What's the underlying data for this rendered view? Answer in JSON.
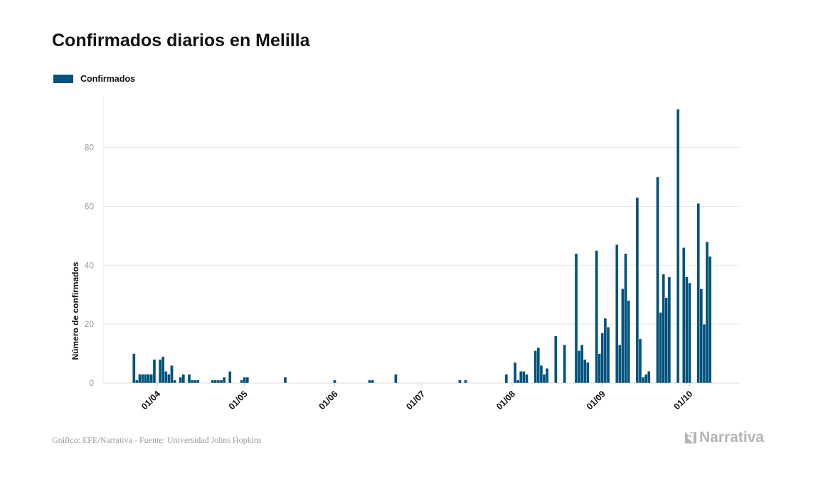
{
  "title": "Confirmados diarios en Melilla",
  "footer": "Gráfico: EFE/Narrativa - Fuente: Universidad Johns Hopkins",
  "logo_text": "Narrativa",
  "colors": {
    "bar": "#00527c",
    "grid": "#e8e8e8",
    "tick_text": "#999999",
    "logo": "#b5b5b5"
  },
  "chart_data": {
    "type": "bar",
    "title": "Confirmados diarios en Melilla",
    "xlabel": "",
    "ylabel": "Número de confirmados",
    "ylim": [
      0,
      97.5
    ],
    "yticks": [
      0,
      20,
      40,
      60,
      80
    ],
    "xticks": [
      "01/04",
      "01/05",
      "01/06",
      "01/07",
      "01/08",
      "01/09",
      "01/10"
    ],
    "grid": true,
    "legend_placement": "top-left",
    "series": [
      {
        "name": "Confirmados",
        "x": [
          "24/03",
          "25/03",
          "26/03",
          "27/03",
          "28/03",
          "29/03",
          "30/03",
          "31/03",
          "02/04",
          "03/04",
          "04/04",
          "05/04",
          "06/04",
          "07/04",
          "09/04",
          "10/04",
          "12/04",
          "13/04",
          "14/04",
          "15/04",
          "20/04",
          "21/04",
          "22/04",
          "23/04",
          "24/04",
          "26/04",
          "30/04",
          "01/05",
          "02/05",
          "15/05",
          "01/06",
          "13/06",
          "14/06",
          "22/06",
          "14/07",
          "16/07",
          "30/07",
          "02/08",
          "03/08",
          "04/08",
          "05/08",
          "06/08",
          "09/08",
          "10/08",
          "11/08",
          "12/08",
          "13/08",
          "16/08",
          "19/08",
          "23/08",
          "24/08",
          "25/08",
          "26/08",
          "27/08",
          "30/08",
          "31/08",
          "01/09",
          "02/09",
          "03/09",
          "06/09",
          "07/09",
          "08/09",
          "09/09",
          "10/09",
          "13/09",
          "14/09",
          "15/09",
          "16/09",
          "17/09",
          "20/09",
          "21/09",
          "22/09",
          "23/09",
          "24/09",
          "27/09",
          "29/09",
          "30/09",
          "01/10",
          "04/10",
          "05/10",
          "06/10",
          "07/10",
          "08/10"
        ],
        "values": [
          10,
          1,
          3,
          3,
          3,
          3,
          3,
          8,
          8,
          9,
          4,
          3,
          6,
          1,
          2,
          3,
          3,
          1,
          1,
          1,
          1,
          1,
          1,
          1,
          2,
          4,
          1,
          2,
          2,
          2,
          1,
          1,
          1,
          3,
          1,
          1,
          3,
          7,
          1,
          4,
          4,
          3,
          11,
          12,
          6,
          3,
          5,
          16,
          13,
          44,
          11,
          13,
          8,
          7,
          45,
          10,
          17,
          22,
          19,
          47,
          13,
          32,
          44,
          28,
          63,
          15,
          2,
          3,
          4,
          70,
          24,
          37,
          29,
          36,
          93,
          46,
          36,
          34,
          61,
          32,
          20,
          48,
          43
        ]
      }
    ]
  }
}
